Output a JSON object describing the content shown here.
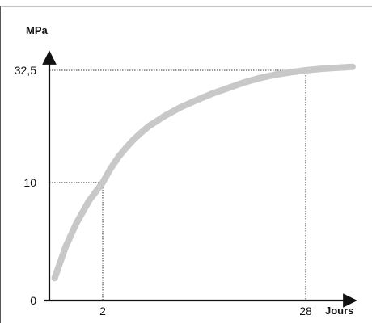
{
  "chart_data": {
    "type": "line",
    "title": "",
    "xlabel": "Jours",
    "ylabel": "MPa",
    "x_ticks": [
      "2",
      "28"
    ],
    "y_ticks": [
      "0",
      "10",
      "32,5"
    ],
    "x_tick_values": [
      2,
      28
    ],
    "y_tick_values": [
      0,
      10,
      32.5
    ],
    "reference_points": [
      {
        "x": 2,
        "y": 10
      },
      {
        "x": 28,
        "y": 32.5
      }
    ],
    "series": [
      {
        "color": "#c8c8c8",
        "x": [
          0.2,
          0.6,
          1,
          1.5,
          2,
          3,
          4,
          5,
          6,
          7,
          8,
          10,
          12,
          14,
          16,
          18,
          20,
          22,
          24,
          26,
          28,
          30,
          32,
          34
        ],
        "y": [
          1.9,
          4.5,
          6.5,
          8.5,
          10,
          12.8,
          15.1,
          17.0,
          18.7,
          20.1,
          21.4,
          23.4,
          25.1,
          26.5,
          27.8,
          28.9,
          30.0,
          30.9,
          31.6,
          32.1,
          32.5,
          32.8,
          33.0,
          33.2
        ]
      }
    ],
    "grid": false,
    "legend": "none"
  }
}
